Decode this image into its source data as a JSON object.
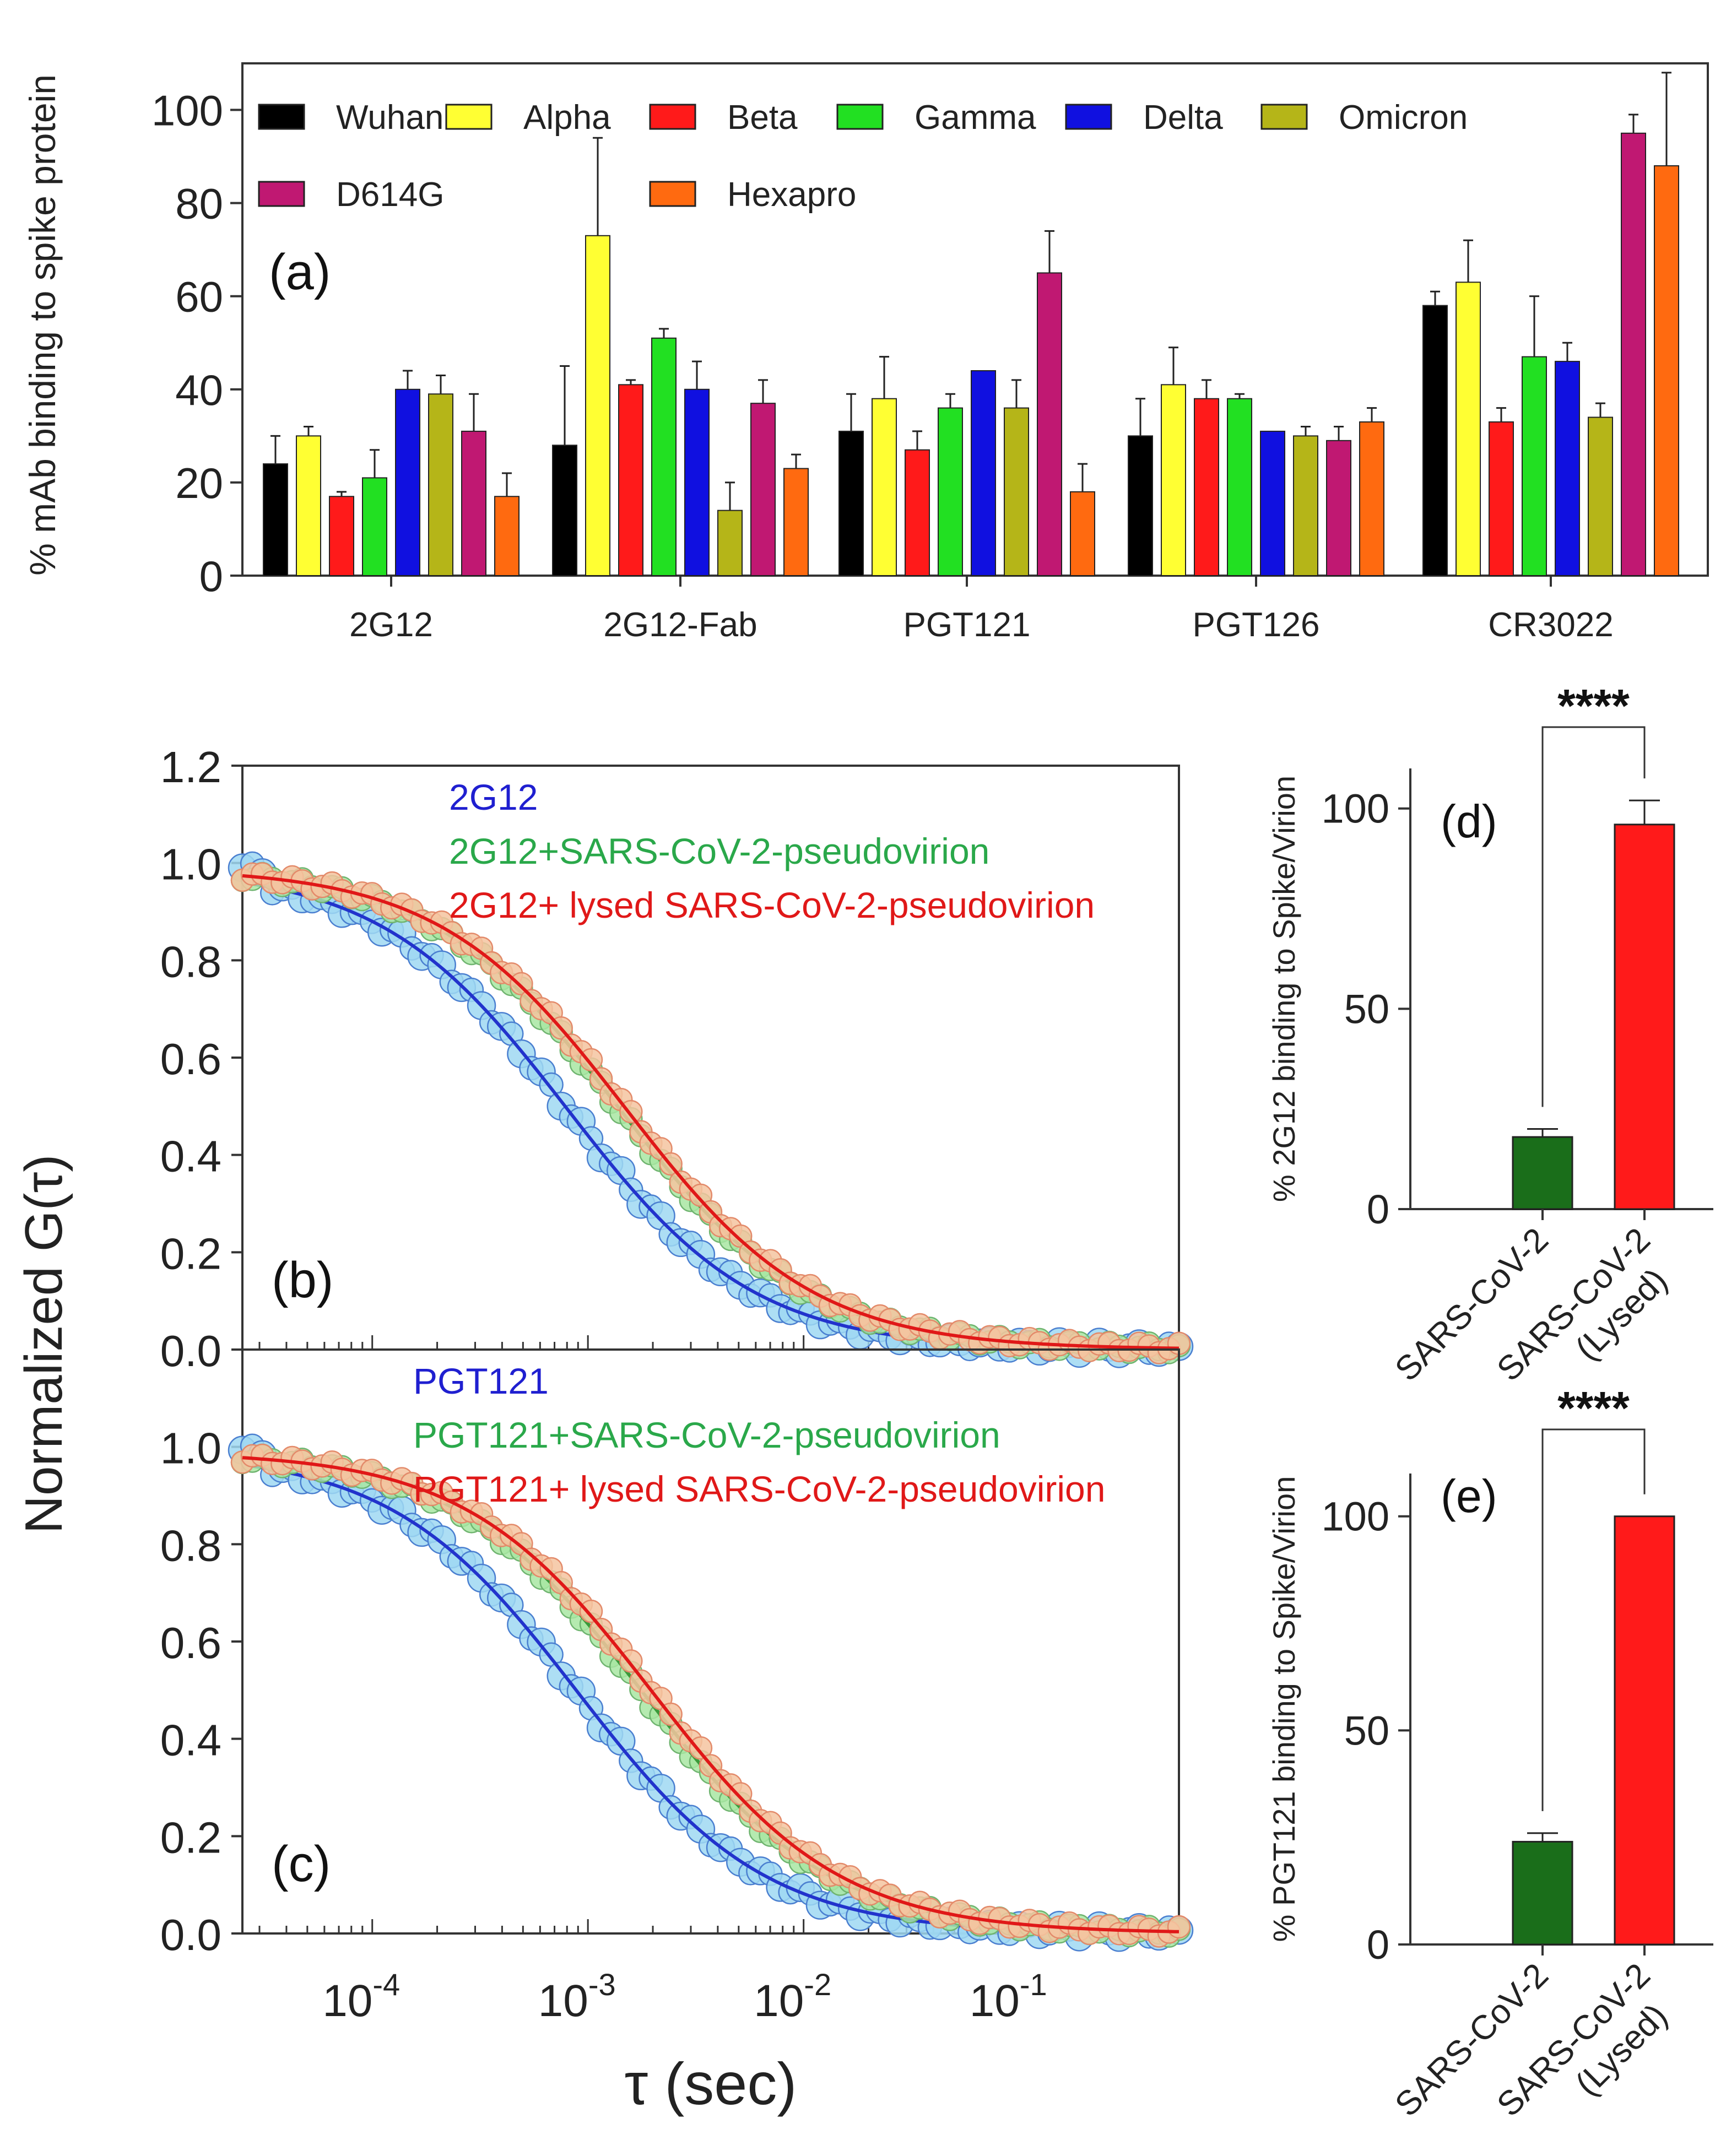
{
  "chart_data": [
    {
      "id": "a",
      "type": "bar",
      "panel_label": "(a)",
      "ylabel": "% mAb binding to spike protein",
      "ylim": [
        0,
        110
      ],
      "yticks": [
        "0",
        "20",
        "40",
        "60",
        "80",
        "100"
      ],
      "categories": [
        "2G12",
        "2G12-Fab",
        "PGT121",
        "PGT126",
        "CR3022"
      ],
      "series": [
        {
          "name": "Wuhan",
          "color": "#000000",
          "values": [
            24,
            28,
            31,
            30,
            58
          ],
          "errors": [
            6,
            17,
            8,
            8,
            3
          ]
        },
        {
          "name": "Alpha",
          "color": "#ffff33",
          "values": [
            30,
            73,
            38,
            41,
            63
          ],
          "errors": [
            2,
            21,
            9,
            8,
            9
          ]
        },
        {
          "name": "Beta",
          "color": "#ff1a1a",
          "values": [
            17,
            41,
            27,
            38,
            33
          ],
          "errors": [
            1,
            1,
            4,
            4,
            3
          ]
        },
        {
          "name": "Gamma",
          "color": "#22e022",
          "values": [
            21,
            51,
            36,
            38,
            47
          ],
          "errors": [
            6,
            2,
            3,
            1,
            13
          ]
        },
        {
          "name": "Delta",
          "color": "#1010e0",
          "values": [
            40,
            40,
            44,
            31,
            46
          ],
          "errors": [
            4,
            6,
            0,
            0,
            4
          ]
        },
        {
          "name": "Omicron",
          "color": "#b5b518",
          "values": [
            39,
            14,
            36,
            30,
            34
          ],
          "errors": [
            4,
            6,
            6,
            2,
            3
          ]
        },
        {
          "name": "D614G",
          "color": "#c01872",
          "values": [
            31,
            37,
            65,
            29,
            95
          ],
          "errors": [
            8,
            5,
            9,
            3,
            4
          ]
        },
        {
          "name": "Hexapro",
          "color": "#ff6a10",
          "values": [
            17,
            23,
            18,
            33,
            88
          ],
          "errors": [
            5,
            3,
            6,
            3,
            20
          ]
        }
      ]
    },
    {
      "id": "b",
      "type": "scatter",
      "panel_label": "(b)",
      "xscale": "log",
      "xlim": [
        2.5e-05,
        0.55
      ],
      "ylim": [
        0,
        1.2
      ],
      "yticks": [
        "0.0",
        "0.2",
        "0.4",
        "0.6",
        "0.8",
        "1.0",
        "1.2"
      ],
      "series": [
        {
          "name": "2G12",
          "color": "#1f1fd0",
          "marker_color": "#9fd8f2",
          "curve": "#2233cc",
          "tau_d": 0.0008,
          "A": 0.99
        },
        {
          "name": "2G12+SARS-CoV-2-pseudovirion",
          "color": "#2aa84a",
          "marker_color": "#a8e6a2",
          "curve": "#3a9a3a",
          "tau_d": 0.0014,
          "A": 0.99
        },
        {
          "name": "2G12+ lysed SARS-CoV-2-pseudovirion",
          "color": "#e01818",
          "marker_color": "#f5c4a0",
          "curve": "#e01818",
          "tau_d": 0.0015,
          "A": 0.99
        }
      ]
    },
    {
      "id": "c",
      "type": "scatter",
      "panel_label": "(c)",
      "xscale": "log",
      "xlim": [
        2.5e-05,
        0.55
      ],
      "ylim": [
        0,
        1.2
      ],
      "yticks": [
        "0.0",
        "0.2",
        "0.4",
        "0.6",
        "0.8",
        "1.0"
      ],
      "xticks": [
        {
          "base": "10",
          "exp": "-4",
          "value": 0.0001
        },
        {
          "base": "10",
          "exp": "-3",
          "value": 0.001
        },
        {
          "base": "10",
          "exp": "-2",
          "value": 0.01
        },
        {
          "base": "10",
          "exp": "-1",
          "value": 0.1
        }
      ],
      "xlabel": "τ (sec)",
      "ylabel": "Normalized G(τ)",
      "series": [
        {
          "name": "PGT121",
          "color": "#1f1fd0",
          "marker_color": "#9fd8f2",
          "curve": "#2233cc",
          "tau_d": 0.0009,
          "A": 0.99
        },
        {
          "name": "PGT121+SARS-CoV-2-pseudovirion",
          "color": "#2aa84a",
          "marker_color": "#a8e6a2",
          "curve": "#3a9a3a",
          "tau_d": 0.0018,
          "A": 0.99
        },
        {
          "name": "PGT121+ lysed SARS-CoV-2-pseudovirion",
          "color": "#e01818",
          "marker_color": "#f5c4a0",
          "curve": "#e01818",
          "tau_d": 0.002,
          "A": 0.99
        }
      ]
    },
    {
      "id": "d",
      "type": "bar",
      "panel_label": "(d)",
      "ylabel": "% 2G12 binding to Spike/Virion",
      "ylim": [
        0,
        110
      ],
      "yticks": [
        "0",
        "50",
        "100"
      ],
      "significance": "****",
      "categories": [
        "SARS-CoV-2",
        "SARS-CoV-2\n(Lysed)"
      ],
      "category_lines": [
        [
          "SARS-CoV-2"
        ],
        [
          "SARS-CoV-2",
          "(Lysed)"
        ]
      ],
      "values": [
        18,
        96
      ],
      "errors": [
        2,
        6
      ],
      "colors": [
        "#1a6e1a",
        "#ff1a1a"
      ]
    },
    {
      "id": "e",
      "type": "bar",
      "panel_label": "(e)",
      "ylabel": "% PGT121 binding to Spike/Virion",
      "ylim": [
        0,
        110
      ],
      "yticks": [
        "0",
        "50",
        "100"
      ],
      "significance": "****",
      "categories": [
        "SARS-CoV-2",
        "SARS-CoV-2\n(Lysed)"
      ],
      "category_lines": [
        [
          "SARS-CoV-2"
        ],
        [
          "SARS-CoV-2",
          "(Lysed)"
        ]
      ],
      "values": [
        24,
        100
      ],
      "errors": [
        2,
        0
      ],
      "colors": [
        "#1a6e1a",
        "#ff1a1a"
      ]
    }
  ]
}
